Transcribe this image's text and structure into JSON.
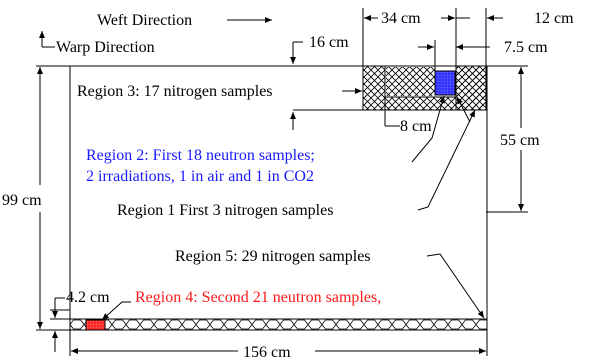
{
  "labels": {
    "weft_direction": "Weft Direction",
    "warp_direction": "Warp Direction",
    "dim_34cm": "34 cm",
    "dim_12cm": "12 cm",
    "dim_16cm": "16 cm",
    "dim_7_5cm": "7.5 cm",
    "dim_8cm": "8 cm",
    "dim_55cm": "55 cm",
    "dim_99cm": "99 cm",
    "dim_4_2cm": "4.2 cm",
    "dim_156cm": "156 cm",
    "region3": "Region 3: 17 nitrogen samples",
    "region2_line1": "Region 2: First 18 neutron samples;",
    "region2_line2": "2 irradiations, 1 in air and 1 in CO2",
    "region1": "Region 1  First 3 nitrogen samples",
    "region5": "Region 5: 29 nitrogen samples",
    "region4": "Region 4: Second 21 neutron samples,"
  },
  "colors": {
    "region2": "#1a1aff",
    "region4": "#ff1a1a",
    "outline": "#000000"
  }
}
